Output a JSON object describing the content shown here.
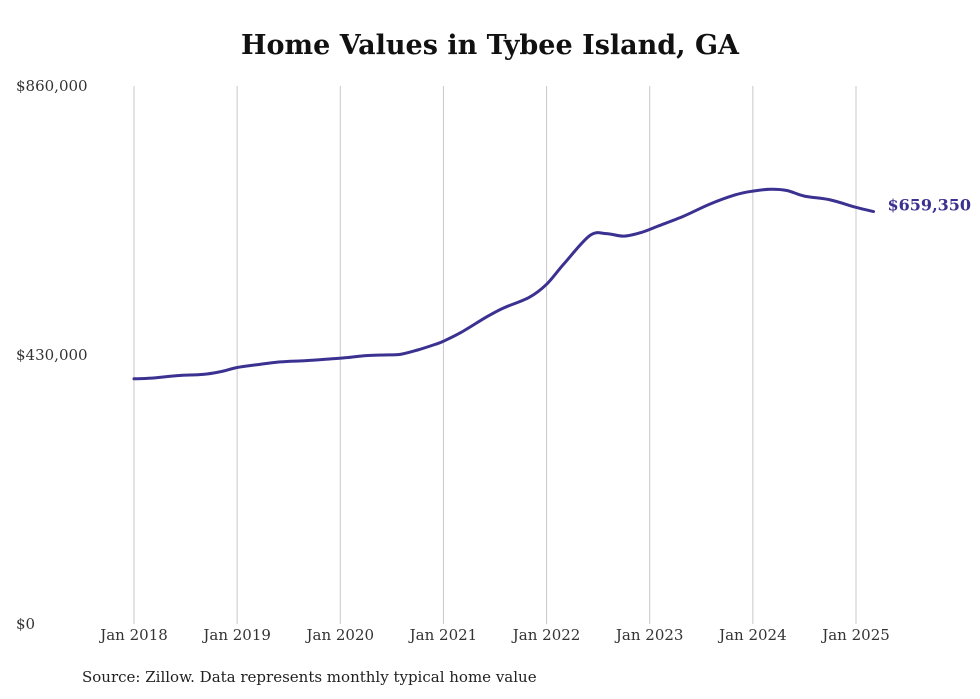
{
  "chart_data": {
    "type": "line",
    "title": "Home Values in Tybee Island, GA",
    "source": "Source: Zillow. Data represents monthly typical home value",
    "xlabel": "",
    "ylabel": "",
    "ylim": [
      0,
      860000
    ],
    "y_ticks": [
      "$0",
      "$430,000",
      "$860,000"
    ],
    "y_tick_values": [
      0,
      430000,
      860000
    ],
    "x_ticks": [
      "Jan 2018",
      "Jan 2019",
      "Jan 2020",
      "Jan 2021",
      "Jan 2022",
      "Jan 2023",
      "Jan 2024",
      "Jan 2025"
    ],
    "x_tick_values": [
      2018.0,
      2019.0,
      2020.0,
      2021.0,
      2022.0,
      2023.0,
      2024.0,
      2025.0
    ],
    "xlim": [
      2018.0,
      2025.0
    ],
    "grid": "vertical",
    "line_color": "#3b3191",
    "end_label": "$659,350",
    "series": [
      {
        "values": [
          {
            "x": 2018.0,
            "y": 392000
          },
          {
            "x": 2018.17,
            "y": 393000
          },
          {
            "x": 2018.42,
            "y": 397000
          },
          {
            "x": 2018.67,
            "y": 399000
          },
          {
            "x": 2018.83,
            "y": 403000
          },
          {
            "x": 2019.0,
            "y": 410000
          },
          {
            "x": 2019.17,
            "y": 414000
          },
          {
            "x": 2019.42,
            "y": 419000
          },
          {
            "x": 2019.67,
            "y": 421000
          },
          {
            "x": 2019.92,
            "y": 424000
          },
          {
            "x": 2020.08,
            "y": 426000
          },
          {
            "x": 2020.25,
            "y": 429000
          },
          {
            "x": 2020.42,
            "y": 430000
          },
          {
            "x": 2020.58,
            "y": 431000
          },
          {
            "x": 2020.75,
            "y": 438000
          },
          {
            "x": 2020.92,
            "y": 447000
          },
          {
            "x": 2021.0,
            "y": 452000
          },
          {
            "x": 2021.17,
            "y": 466000
          },
          {
            "x": 2021.42,
            "y": 491000
          },
          {
            "x": 2021.58,
            "y": 505000
          },
          {
            "x": 2021.83,
            "y": 522000
          },
          {
            "x": 2022.0,
            "y": 543000
          },
          {
            "x": 2022.17,
            "y": 576000
          },
          {
            "x": 2022.42,
            "y": 621000
          },
          {
            "x": 2022.58,
            "y": 624000
          },
          {
            "x": 2022.75,
            "y": 620000
          },
          {
            "x": 2022.92,
            "y": 626000
          },
          {
            "x": 2023.08,
            "y": 636000
          },
          {
            "x": 2023.33,
            "y": 652000
          },
          {
            "x": 2023.58,
            "y": 671000
          },
          {
            "x": 2023.83,
            "y": 686000
          },
          {
            "x": 2024.0,
            "y": 692000
          },
          {
            "x": 2024.17,
            "y": 695000
          },
          {
            "x": 2024.33,
            "y": 693000
          },
          {
            "x": 2024.5,
            "y": 684000
          },
          {
            "x": 2024.75,
            "y": 678000
          },
          {
            "x": 2025.0,
            "y": 666000
          },
          {
            "x": 2025.17,
            "y": 659350
          }
        ]
      }
    ]
  }
}
